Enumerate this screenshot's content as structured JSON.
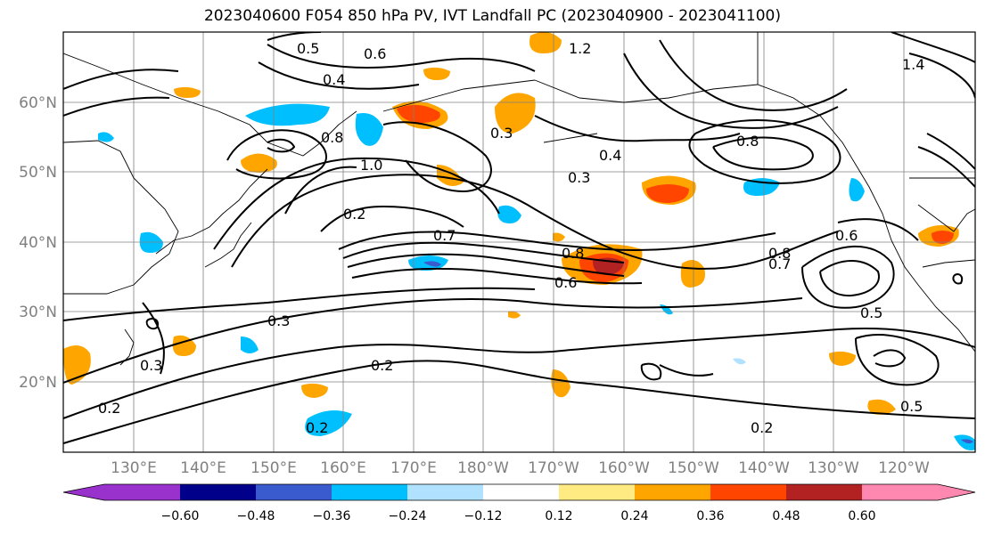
{
  "title": "2023040600 F054 850 hPa PV, IVT Landfall PC (2023040900 - 2023041100)",
  "map": {
    "projection": "PlateCarree",
    "lon_labels": [
      "130°E",
      "140°E",
      "150°E",
      "160°E",
      "170°E",
      "180°W",
      "170°W",
      "160°W",
      "150°W",
      "140°W",
      "130°W",
      "120°W"
    ],
    "lat_labels": [
      "60°N",
      "50°N",
      "40°N",
      "30°N",
      "20°N"
    ],
    "gridlines": true,
    "coastlines": true,
    "contour_labels": [
      "1.0",
      "0.8",
      "0.8",
      "0.8",
      "0.8",
      "0.7",
      "0.7",
      "0.6",
      "0.6",
      "0.6",
      "0.5",
      "0.5",
      "0.5",
      "0.4",
      "0.4",
      "0.3",
      "0.3",
      "0.3",
      "0.3",
      "0.2",
      "0.2",
      "0.2",
      "0.2",
      "0.2",
      "1.2",
      "1.4"
    ]
  },
  "colorbar": {
    "ticks": [
      "−0.60",
      "−0.48",
      "−0.36",
      "−0.24",
      "−0.12",
      "0.12",
      "0.24",
      "0.36",
      "0.48",
      "0.60"
    ],
    "colors": [
      "#9932cc",
      "#00008b",
      "#3a5bcd",
      "#00bfff",
      "#b0e2ff",
      "#ffffff",
      "#ffeb82",
      "#ffa500",
      "#ff4500",
      "#b22222",
      "#ff88b0"
    ]
  }
}
